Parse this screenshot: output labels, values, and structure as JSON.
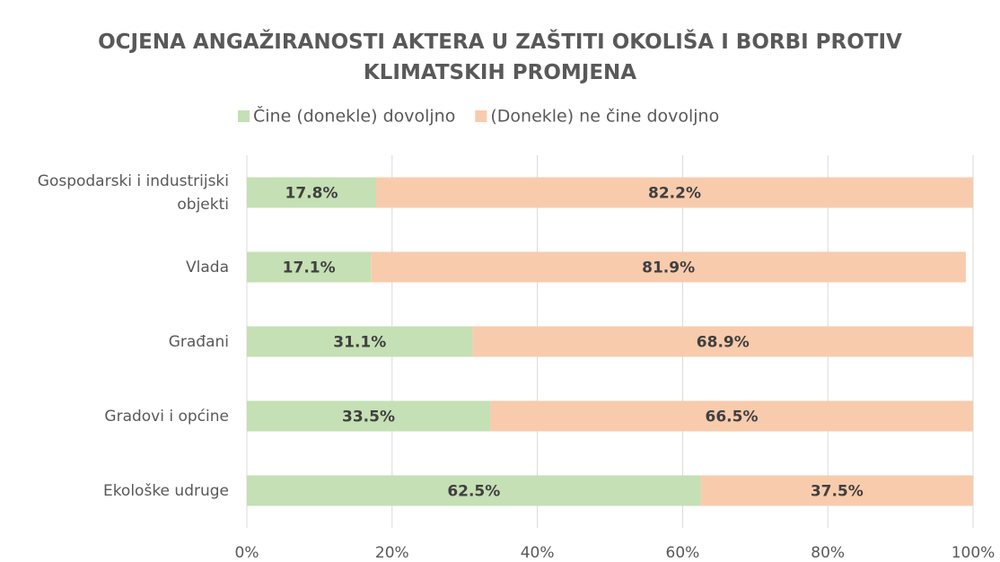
{
  "chart_data": {
    "type": "stacked-bar-horizontal",
    "title": "OCJENA ANGAŽIRANOSTI AKTERA U ZAŠTITI OKOLIŠA I BORBI PROTIV KLIMATSKIH PROMJENA",
    "categories": [
      "Gospodarski i industrijski objekti",
      "Vlada",
      "Građani",
      "Gradovi i općine",
      "Ekološke udruge"
    ],
    "series": [
      {
        "name": "Čine (donekle) dovoljno",
        "color": "#c5e0b4",
        "values": [
          17.8,
          17.1,
          31.1,
          33.5,
          62.5
        ],
        "value_labels": [
          "17.8%",
          "17.1%",
          "31.1%",
          "33.5%",
          "62.5%"
        ]
      },
      {
        "name": "(Donekle) ne čine dovoljno",
        "color": "#f8cbad",
        "values": [
          82.2,
          81.9,
          68.9,
          66.5,
          37.5
        ],
        "value_labels": [
          "82.2%",
          "81.9%",
          "68.9%",
          "66.5%",
          "37.5%"
        ]
      }
    ],
    "xlim": [
      0,
      100
    ],
    "xticks": [
      {
        "value": 0,
        "label": "0%"
      },
      {
        "value": 20,
        "label": "20%"
      },
      {
        "value": 40,
        "label": "40%"
      },
      {
        "value": 60,
        "label": "60%"
      },
      {
        "value": 80,
        "label": "80%"
      },
      {
        "value": 100,
        "label": "100%"
      }
    ],
    "grid": true,
    "legend": "top"
  }
}
